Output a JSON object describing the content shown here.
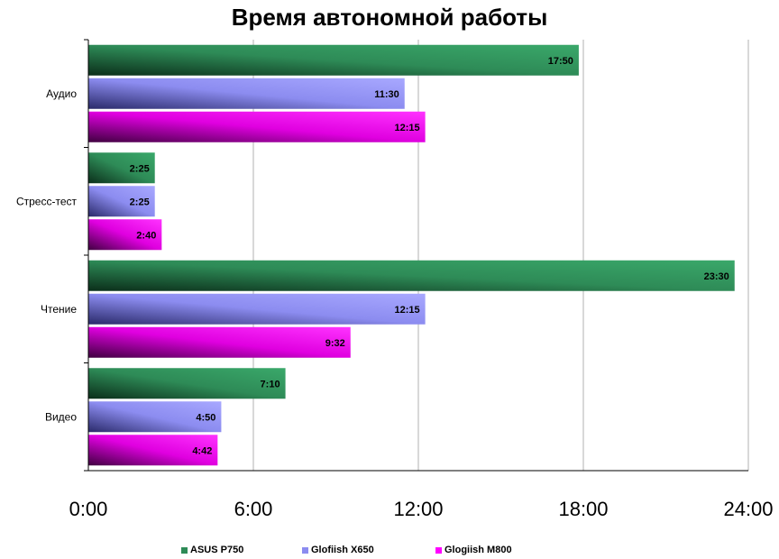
{
  "chart_data": {
    "type": "bar",
    "orientation": "horizontal",
    "title": "Время автономной работы",
    "categories": [
      "Аудио",
      "Стресс-тест",
      "Чтение",
      "Видео"
    ],
    "series": [
      {
        "name": "ASUS P750",
        "color": "#2e8b57",
        "values": [
          17.8333,
          2.4167,
          23.5,
          7.1667
        ],
        "labels": [
          "17:50",
          "2:25",
          "23:30",
          "7:10"
        ]
      },
      {
        "name": "Glofiish X650",
        "color": "#8c8cf0",
        "values": [
          11.5,
          2.4167,
          12.25,
          4.8333
        ],
        "labels": [
          "11:30",
          "2:25",
          "12:15",
          "4:50"
        ]
      },
      {
        "name": "Glogiish M800",
        "color": "#ff00ff",
        "values": [
          12.25,
          2.6667,
          9.5333,
          4.7
        ],
        "labels": [
          "12:15",
          "2:40",
          "9:32",
          "4:42"
        ]
      }
    ],
    "xlim": [
      0,
      24
    ],
    "x_ticks": [
      "0:00",
      "6:00",
      "12:00",
      "18:00",
      "24:00"
    ],
    "grid": true,
    "legend_position": "bottom"
  }
}
